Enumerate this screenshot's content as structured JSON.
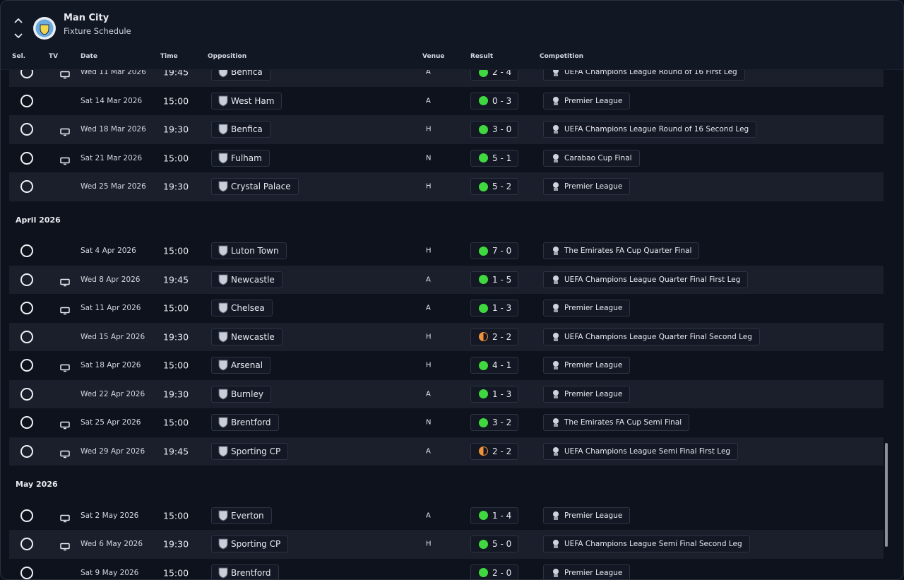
{
  "header": {
    "title": "Man City",
    "subtitle": "Fixture Schedule"
  },
  "columns": [
    "Sel.",
    "TV",
    "Date",
    "Time",
    "Opposition",
    "Venue",
    "Result",
    "Competition"
  ],
  "groups": [
    {
      "rows": [
        {
          "tv": true,
          "date": "Wed 11 Mar 2026",
          "time": "19:45",
          "opposition": "Benfica",
          "venue": "A",
          "result": "2 - 4",
          "dot_color": "#3fd93f",
          "competition": "UEFA Champions League Round of 16 First Leg"
        },
        {
          "tv": false,
          "date": "Sat 14 Mar 2026",
          "time": "15:00",
          "opposition": "West Ham",
          "venue": "A",
          "result": "0 - 3",
          "dot_color": "#3fd93f",
          "competition": "Premier League"
        },
        {
          "tv": true,
          "date": "Wed 18 Mar 2026",
          "time": "19:30",
          "opposition": "Benfica",
          "venue": "H",
          "result": "3 - 0",
          "dot_color": "#3fd93f",
          "competition": "UEFA Champions League Round of 16 Second Leg"
        },
        {
          "tv": true,
          "date": "Sat 21 Mar 2026",
          "time": "15:00",
          "opposition": "Fulham",
          "venue": "N",
          "result": "5 - 1",
          "dot_color": "#3fd93f",
          "competition": "Carabao Cup Final"
        },
        {
          "tv": false,
          "date": "Wed 25 Mar 2026",
          "time": "19:30",
          "opposition": "Crystal Palace",
          "venue": "H",
          "result": "5 - 2",
          "dot_color": "#3fd93f",
          "competition": "Premier League"
        }
      ]
    },
    {
      "month": "April 2026",
      "rows": [
        {
          "tv": false,
          "date": "Sat 4 Apr 2026",
          "time": "15:00",
          "opposition": "Luton Town",
          "venue": "H",
          "result": "7 - 0",
          "dot_color": "#3fd93f",
          "competition": "The Emirates FA Cup Quarter Final"
        },
        {
          "tv": true,
          "date": "Wed 8 Apr 2026",
          "time": "19:45",
          "opposition": "Newcastle",
          "venue": "A",
          "result": "1 - 5",
          "dot_color": "#3fd93f",
          "competition": "UEFA Champions League Quarter Final First Leg"
        },
        {
          "tv": true,
          "date": "Sat 11 Apr 2026",
          "time": "15:00",
          "opposition": "Chelsea",
          "venue": "A",
          "result": "1 - 3",
          "dot_color": "#3fd93f",
          "competition": "Premier League"
        },
        {
          "tv": false,
          "date": "Wed 15 Apr 2026",
          "time": "19:30",
          "opposition": "Newcastle",
          "venue": "H",
          "result": "2 - 2",
          "dot_color": "#f0923a",
          "dot_half": true,
          "competition": "UEFA Champions League Quarter Final Second Leg"
        },
        {
          "tv": true,
          "date": "Sat 18 Apr 2026",
          "time": "15:00",
          "opposition": "Arsenal",
          "venue": "H",
          "result": "4 - 1",
          "dot_color": "#3fd93f",
          "competition": "Premier League"
        },
        {
          "tv": false,
          "date": "Wed 22 Apr 2026",
          "time": "19:30",
          "opposition": "Burnley",
          "venue": "A",
          "result": "1 - 3",
          "dot_color": "#3fd93f",
          "competition": "Premier League"
        },
        {
          "tv": true,
          "date": "Sat 25 Apr 2026",
          "time": "15:00",
          "opposition": "Brentford",
          "venue": "N",
          "result": "3 - 2",
          "dot_color": "#3fd93f",
          "competition": "The Emirates FA Cup Semi Final"
        },
        {
          "tv": true,
          "date": "Wed 29 Apr 2026",
          "time": "19:45",
          "opposition": "Sporting CP",
          "venue": "A",
          "result": "2 - 2",
          "dot_color": "#f0923a",
          "dot_half": true,
          "competition": "UEFA Champions League Semi Final First Leg"
        }
      ]
    },
    {
      "month": "May 2026",
      "rows": [
        {
          "tv": true,
          "date": "Sat 2 May 2026",
          "time": "15:00",
          "opposition": "Everton",
          "venue": "A",
          "result": "1 - 4",
          "dot_color": "#3fd93f",
          "competition": "Premier League"
        },
        {
          "tv": true,
          "date": "Wed 6 May 2026",
          "time": "19:30",
          "opposition": "Sporting CP",
          "venue": "H",
          "result": "5 - 0",
          "dot_color": "#3fd93f",
          "competition": "UEFA Champions League Semi Final Second Leg"
        },
        {
          "tv": false,
          "date": "Sat 9 May 2026",
          "time": "15:00",
          "opposition": "Brentford",
          "result": "2 - 0",
          "dot_color": "#3fd93f",
          "competition": "Premier League"
        }
      ]
    }
  ]
}
